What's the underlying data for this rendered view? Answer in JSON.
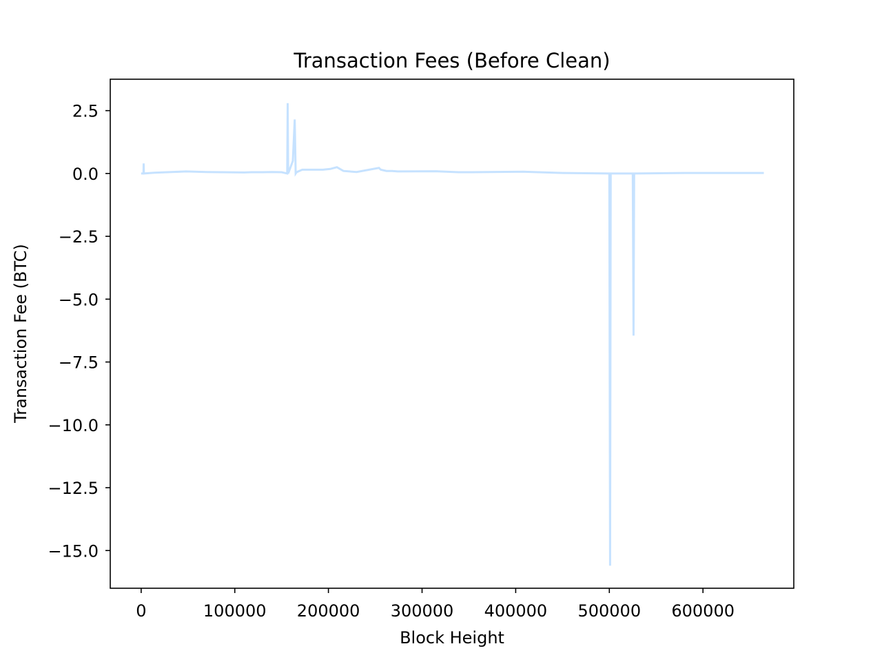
{
  "chart_data": {
    "type": "line",
    "title": "Transaction Fees (Before Clean)",
    "xlabel": "Block Height",
    "ylabel": "Transaction Fee (BTC)",
    "xlim": [
      -33000,
      697000
    ],
    "ylim": [
      -16.5,
      3.75
    ],
    "xticks": [
      0,
      100000,
      200000,
      300000,
      400000,
      500000,
      600000
    ],
    "xtick_labels": [
      "0",
      "100000",
      "200000",
      "300000",
      "400000",
      "500000",
      "600000"
    ],
    "yticks": [
      2.5,
      0.0,
      -2.5,
      -5.0,
      -7.5,
      -10.0,
      -12.5,
      -15.0
    ],
    "ytick_labels": [
      "2.5",
      "0.0",
      "−2.5",
      "−5.0",
      "−7.5",
      "−10.0",
      "−12.5",
      "−15.0"
    ],
    "grid": false,
    "legend": false,
    "series": [
      {
        "color": "#c6e2ff",
        "x": [
          0,
          2500,
          2700,
          2900,
          14000,
          48000,
          70000,
          110000,
          118000,
          128000,
          140000,
          150000,
          156000,
          156500,
          157000,
          158000,
          162000,
          164000,
          165000,
          166000,
          172000,
          194000,
          202000,
          209000,
          216000,
          230000,
          254000,
          256000,
          262000,
          268000,
          274000,
          315000,
          339000,
          353000,
          409000,
          450000,
          500000,
          500800,
          501500,
          502000,
          525000,
          525800,
          526500,
          527000,
          580000,
          620000,
          665000
        ],
        "y": [
          0.0,
          0.0,
          0.4,
          0.0,
          0.03,
          0.08,
          0.06,
          0.04,
          0.05,
          0.05,
          0.06,
          0.05,
          0.0,
          2.8,
          0.0,
          0.1,
          0.5,
          2.15,
          0.0,
          0.05,
          0.15,
          0.15,
          0.18,
          0.25,
          0.1,
          0.06,
          0.22,
          0.15,
          0.1,
          0.1,
          0.08,
          0.09,
          0.05,
          0.05,
          0.07,
          0.02,
          0.0,
          -15.6,
          0.0,
          0.0,
          0.0,
          -6.45,
          0.0,
          0.0,
          0.02,
          0.02,
          0.02
        ]
      }
    ]
  }
}
